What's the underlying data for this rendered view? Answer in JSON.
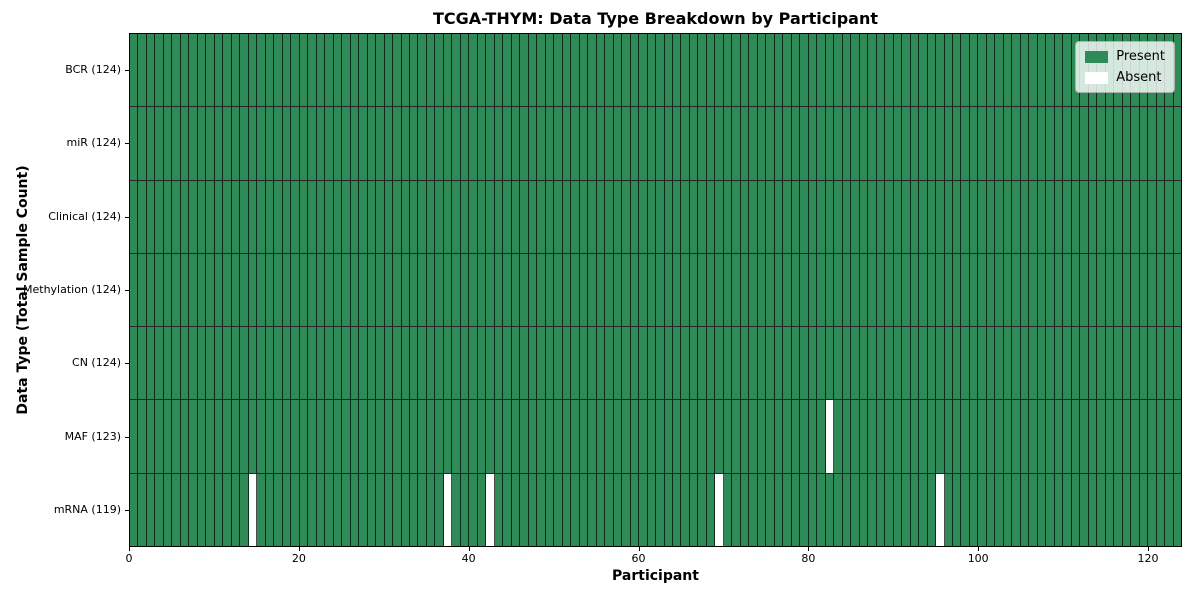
{
  "colors": {
    "present": "#2E8B57",
    "absent": "#FFFFFF",
    "cell_border": "rgba(0,0,0,0.7)",
    "row_border": "rgba(0,0,0,0.85)",
    "legend_border": "#b0b0b0"
  },
  "chart_data": {
    "type": "heatmap",
    "title": "TCGA-THYM: Data Type Breakdown by Participant",
    "xlabel": "Participant",
    "ylabel": "Data Type (Total Sample Count)",
    "n_participants": 124,
    "xlim": [
      0,
      124
    ],
    "x_ticks": [
      0,
      20,
      40,
      60,
      80,
      100,
      120
    ],
    "grid": false,
    "legend_position": "upper right",
    "legend": [
      {
        "label": "Present",
        "color": "#2E8B57"
      },
      {
        "label": "Absent",
        "color": "#FFFFFF"
      }
    ],
    "rows": [
      {
        "label": "BCR (124)",
        "data_type": "BCR",
        "present_count": 124,
        "absent_participants": []
      },
      {
        "label": "miR (124)",
        "data_type": "miR",
        "present_count": 124,
        "absent_participants": []
      },
      {
        "label": "Clinical (124)",
        "data_type": "Clinical",
        "present_count": 124,
        "absent_participants": []
      },
      {
        "label": "Methylation (124)",
        "data_type": "Methylation",
        "present_count": 124,
        "absent_participants": []
      },
      {
        "label": "CN (124)",
        "data_type": "CN",
        "present_count": 124,
        "absent_participants": []
      },
      {
        "label": "MAF (123)",
        "data_type": "MAF",
        "present_count": 123,
        "absent_participants": [
          82
        ]
      },
      {
        "label": "mRNA (119)",
        "data_type": "mRNA",
        "present_count": 119,
        "absent_participants": [
          14,
          37,
          42,
          69,
          95
        ]
      }
    ]
  }
}
